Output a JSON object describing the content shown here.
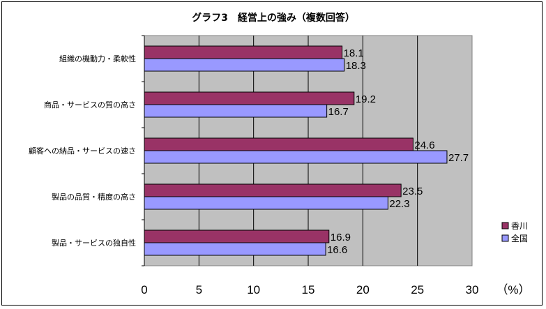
{
  "chart_data": {
    "type": "bar",
    "orientation": "horizontal",
    "title": "グラフ3　経営上の強み（複数回答）",
    "unit_label": "（%）",
    "categories": [
      "組織の機動力・柔軟性",
      "商品・サービスの質の高さ",
      "顧客への納品・サービスの速さ",
      "製品の品質・精度の高さ",
      "製品・サービスの独自性"
    ],
    "series": [
      {
        "name": "香川",
        "color": "#993366",
        "values": [
          18.1,
          19.2,
          24.6,
          23.5,
          16.9
        ],
        "labels": [
          "18.1",
          "19.2",
          "24.6",
          "23.5",
          "16.9"
        ]
      },
      {
        "name": "全国",
        "color": "#9999FF",
        "values": [
          18.3,
          16.7,
          27.7,
          22.3,
          16.6
        ],
        "labels": [
          "18.3",
          "16.7",
          "27.7",
          "22.3",
          "16.6"
        ]
      }
    ],
    "xlim": [
      0,
      30
    ],
    "xticks": [
      "0",
      "5",
      "10",
      "15",
      "20",
      "25",
      "30"
    ],
    "grid": true,
    "legend_position": "right",
    "plot_background": "#C0C0C0"
  }
}
